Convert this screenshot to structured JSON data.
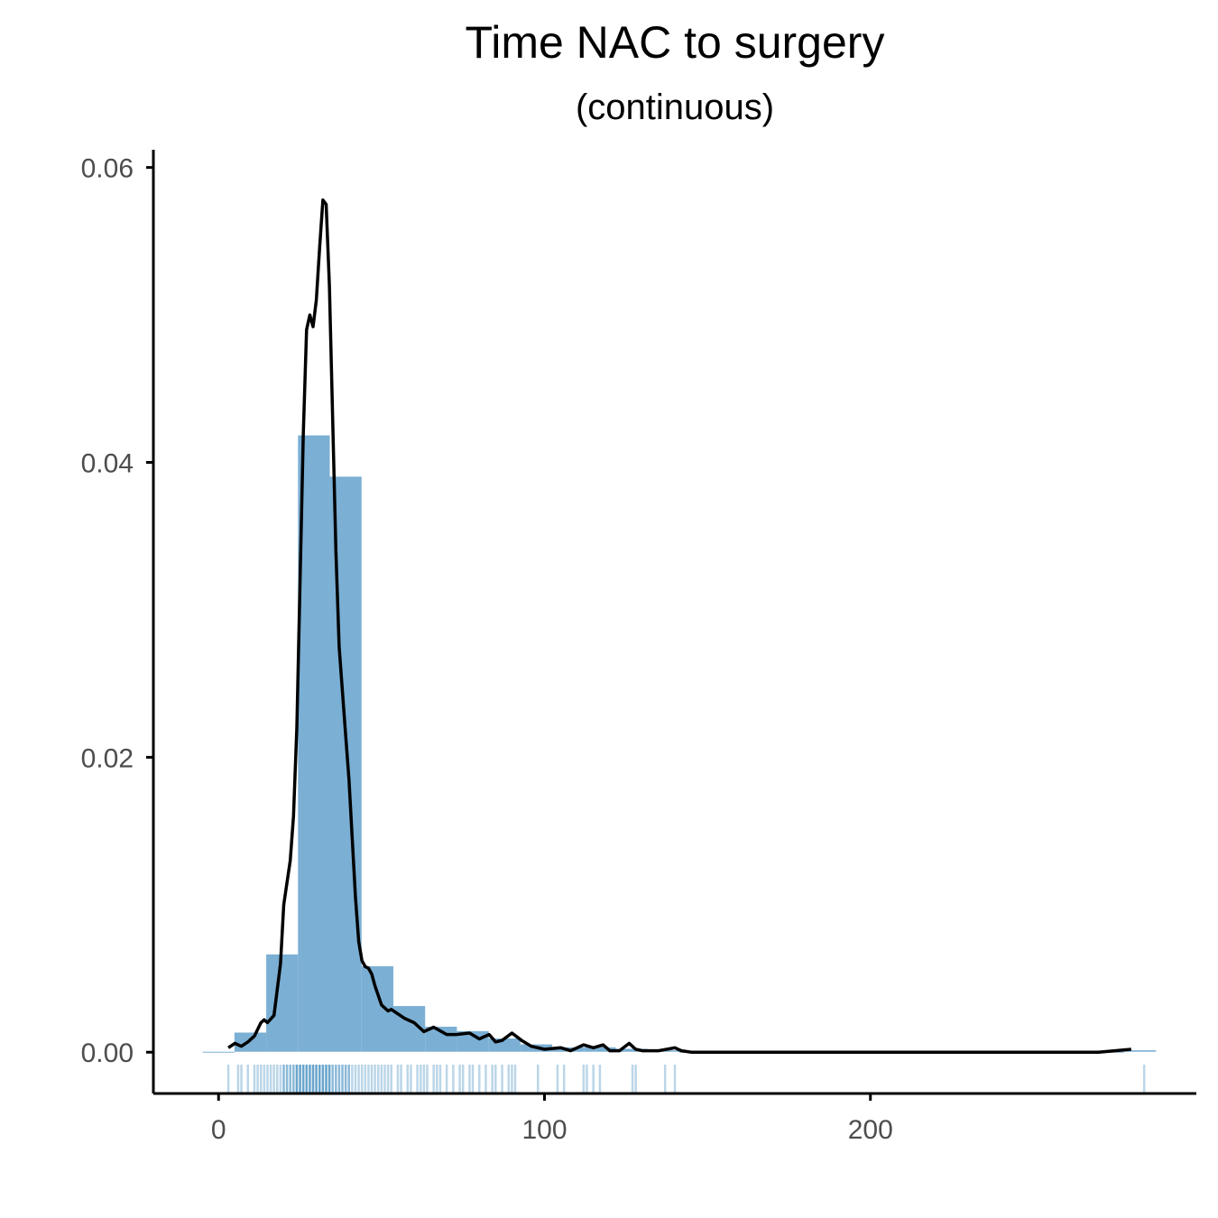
{
  "chart_data": {
    "type": "bar",
    "title": "Time NAC to surgery",
    "subtitle": "(continuous)",
    "xlabel": "",
    "ylabel": "",
    "xlim": [
      -20,
      300
    ],
    "ylim": [
      -0.0028,
      0.0612
    ],
    "grid": false,
    "legend": "none",
    "x_ticks": [
      {
        "value": 0,
        "label": "0"
      },
      {
        "value": 100,
        "label": "100"
      },
      {
        "value": 200,
        "label": "200"
      }
    ],
    "y_ticks": [
      {
        "value": 0,
        "label": "0.00"
      },
      {
        "value": 0.02,
        "label": "0.02"
      },
      {
        "value": 0.04,
        "label": "0.04"
      },
      {
        "value": 0.06,
        "label": "0.06"
      }
    ],
    "histogram": {
      "bin_width": 9.75,
      "bins": [
        {
          "start": -4.875,
          "density": 0.0
        },
        {
          "start": 4.875,
          "density": 0.0013
        },
        {
          "start": 14.625,
          "density": 0.0066
        },
        {
          "start": 24.375,
          "density": 0.0418
        },
        {
          "start": 34.125,
          "density": 0.039
        },
        {
          "start": 43.875,
          "density": 0.0058
        },
        {
          "start": 53.625,
          "density": 0.0031
        },
        {
          "start": 63.375,
          "density": 0.0017
        },
        {
          "start": 73.125,
          "density": 0.0014
        },
        {
          "start": 82.875,
          "density": 0.0009
        },
        {
          "start": 92.625,
          "density": 0.0005
        },
        {
          "start": 102.375,
          "density": 0.0003
        },
        {
          "start": 112.125,
          "density": 0.0003
        },
        {
          "start": 121.875,
          "density": 0.0002
        },
        {
          "start": 131.625,
          "density": 0.0001
        },
        {
          "start": 141.375,
          "density": 0.0
        },
        {
          "start": 151.125,
          "density": 0.0
        },
        {
          "start": 160.875,
          "density": 0.0
        },
        {
          "start": 170.625,
          "density": 0.0
        },
        {
          "start": 180.375,
          "density": 0.0
        },
        {
          "start": 190.125,
          "density": 0.0
        },
        {
          "start": 199.875,
          "density": 0.0
        },
        {
          "start": 209.625,
          "density": 0.0
        },
        {
          "start": 219.375,
          "density": 0.0
        },
        {
          "start": 229.125,
          "density": 0.0
        },
        {
          "start": 238.875,
          "density": 0.0
        },
        {
          "start": 248.625,
          "density": 0.0
        },
        {
          "start": 258.375,
          "density": 0.0
        },
        {
          "start": 268.125,
          "density": 0.0
        },
        {
          "start": 277.875,
          "density": 0.0001
        }
      ]
    },
    "density_curve": {
      "x": [
        3,
        5,
        7,
        9,
        11,
        13,
        14,
        15,
        17,
        19,
        20,
        22,
        23,
        24,
        25,
        26,
        27,
        28,
        29,
        30,
        31,
        32,
        33,
        34,
        35,
        36,
        37,
        38,
        39,
        40,
        41,
        42,
        43,
        44,
        45,
        46,
        47,
        48,
        50,
        52,
        53,
        55,
        57,
        60,
        63,
        66,
        70,
        73,
        77,
        80,
        83,
        85,
        87,
        90,
        93,
        96,
        100,
        105,
        108,
        112,
        115,
        118,
        120,
        123,
        126,
        128,
        130,
        135,
        140,
        142,
        145,
        150,
        160,
        180,
        200,
        220,
        240,
        260,
        270,
        275,
        280
      ],
      "y": [
        0.0003,
        0.0006,
        0.0004,
        0.0007,
        0.0011,
        0.002,
        0.0022,
        0.002,
        0.0025,
        0.006,
        0.01,
        0.013,
        0.016,
        0.022,
        0.032,
        0.042,
        0.049,
        0.05,
        0.0492,
        0.051,
        0.0545,
        0.0578,
        0.0575,
        0.052,
        0.043,
        0.034,
        0.0275,
        0.0245,
        0.0215,
        0.0185,
        0.0145,
        0.0105,
        0.0075,
        0.0062,
        0.0058,
        0.0057,
        0.0053,
        0.0045,
        0.0032,
        0.0028,
        0.0029,
        0.0026,
        0.0023,
        0.002,
        0.0014,
        0.0017,
        0.0012,
        0.0012,
        0.0013,
        0.0009,
        0.0012,
        0.0007,
        0.0008,
        0.0013,
        0.0008,
        0.0004,
        0.0002,
        0.0003,
        0.0001,
        0.0005,
        0.0003,
        0.0005,
        0.0001,
        0.0001,
        0.0006,
        0.0002,
        0.0001,
        0.0001,
        0.0003,
        0.0001,
        0.0,
        0.0,
        0.0,
        0.0,
        0.0,
        0.0,
        0.0,
        0.0,
        0.0,
        0.0001,
        0.0002
      ]
    },
    "rug": {
      "values": [
        3,
        6,
        7,
        9,
        11,
        12,
        13,
        14,
        15,
        16,
        17,
        18,
        19,
        20,
        20,
        21,
        21,
        22,
        22,
        23,
        23,
        24,
        24,
        24,
        25,
        25,
        25,
        26,
        26,
        26,
        27,
        27,
        27,
        28,
        28,
        28,
        29,
        29,
        29,
        30,
        30,
        30,
        31,
        31,
        31,
        32,
        32,
        32,
        33,
        33,
        33,
        34,
        34,
        34,
        35,
        35,
        36,
        36,
        37,
        37,
        38,
        38,
        39,
        39,
        40,
        40,
        41,
        42,
        43,
        44,
        45,
        46,
        47,
        48,
        49,
        50,
        51,
        52,
        53,
        55,
        56,
        58,
        59,
        61,
        62,
        63,
        64,
        66,
        67,
        68,
        70,
        72,
        74,
        75,
        77,
        78,
        80,
        82,
        84,
        85,
        87,
        89,
        90,
        91,
        98,
        104,
        106,
        112,
        113,
        115,
        117,
        127,
        128,
        137,
        140,
        284
      ]
    }
  }
}
